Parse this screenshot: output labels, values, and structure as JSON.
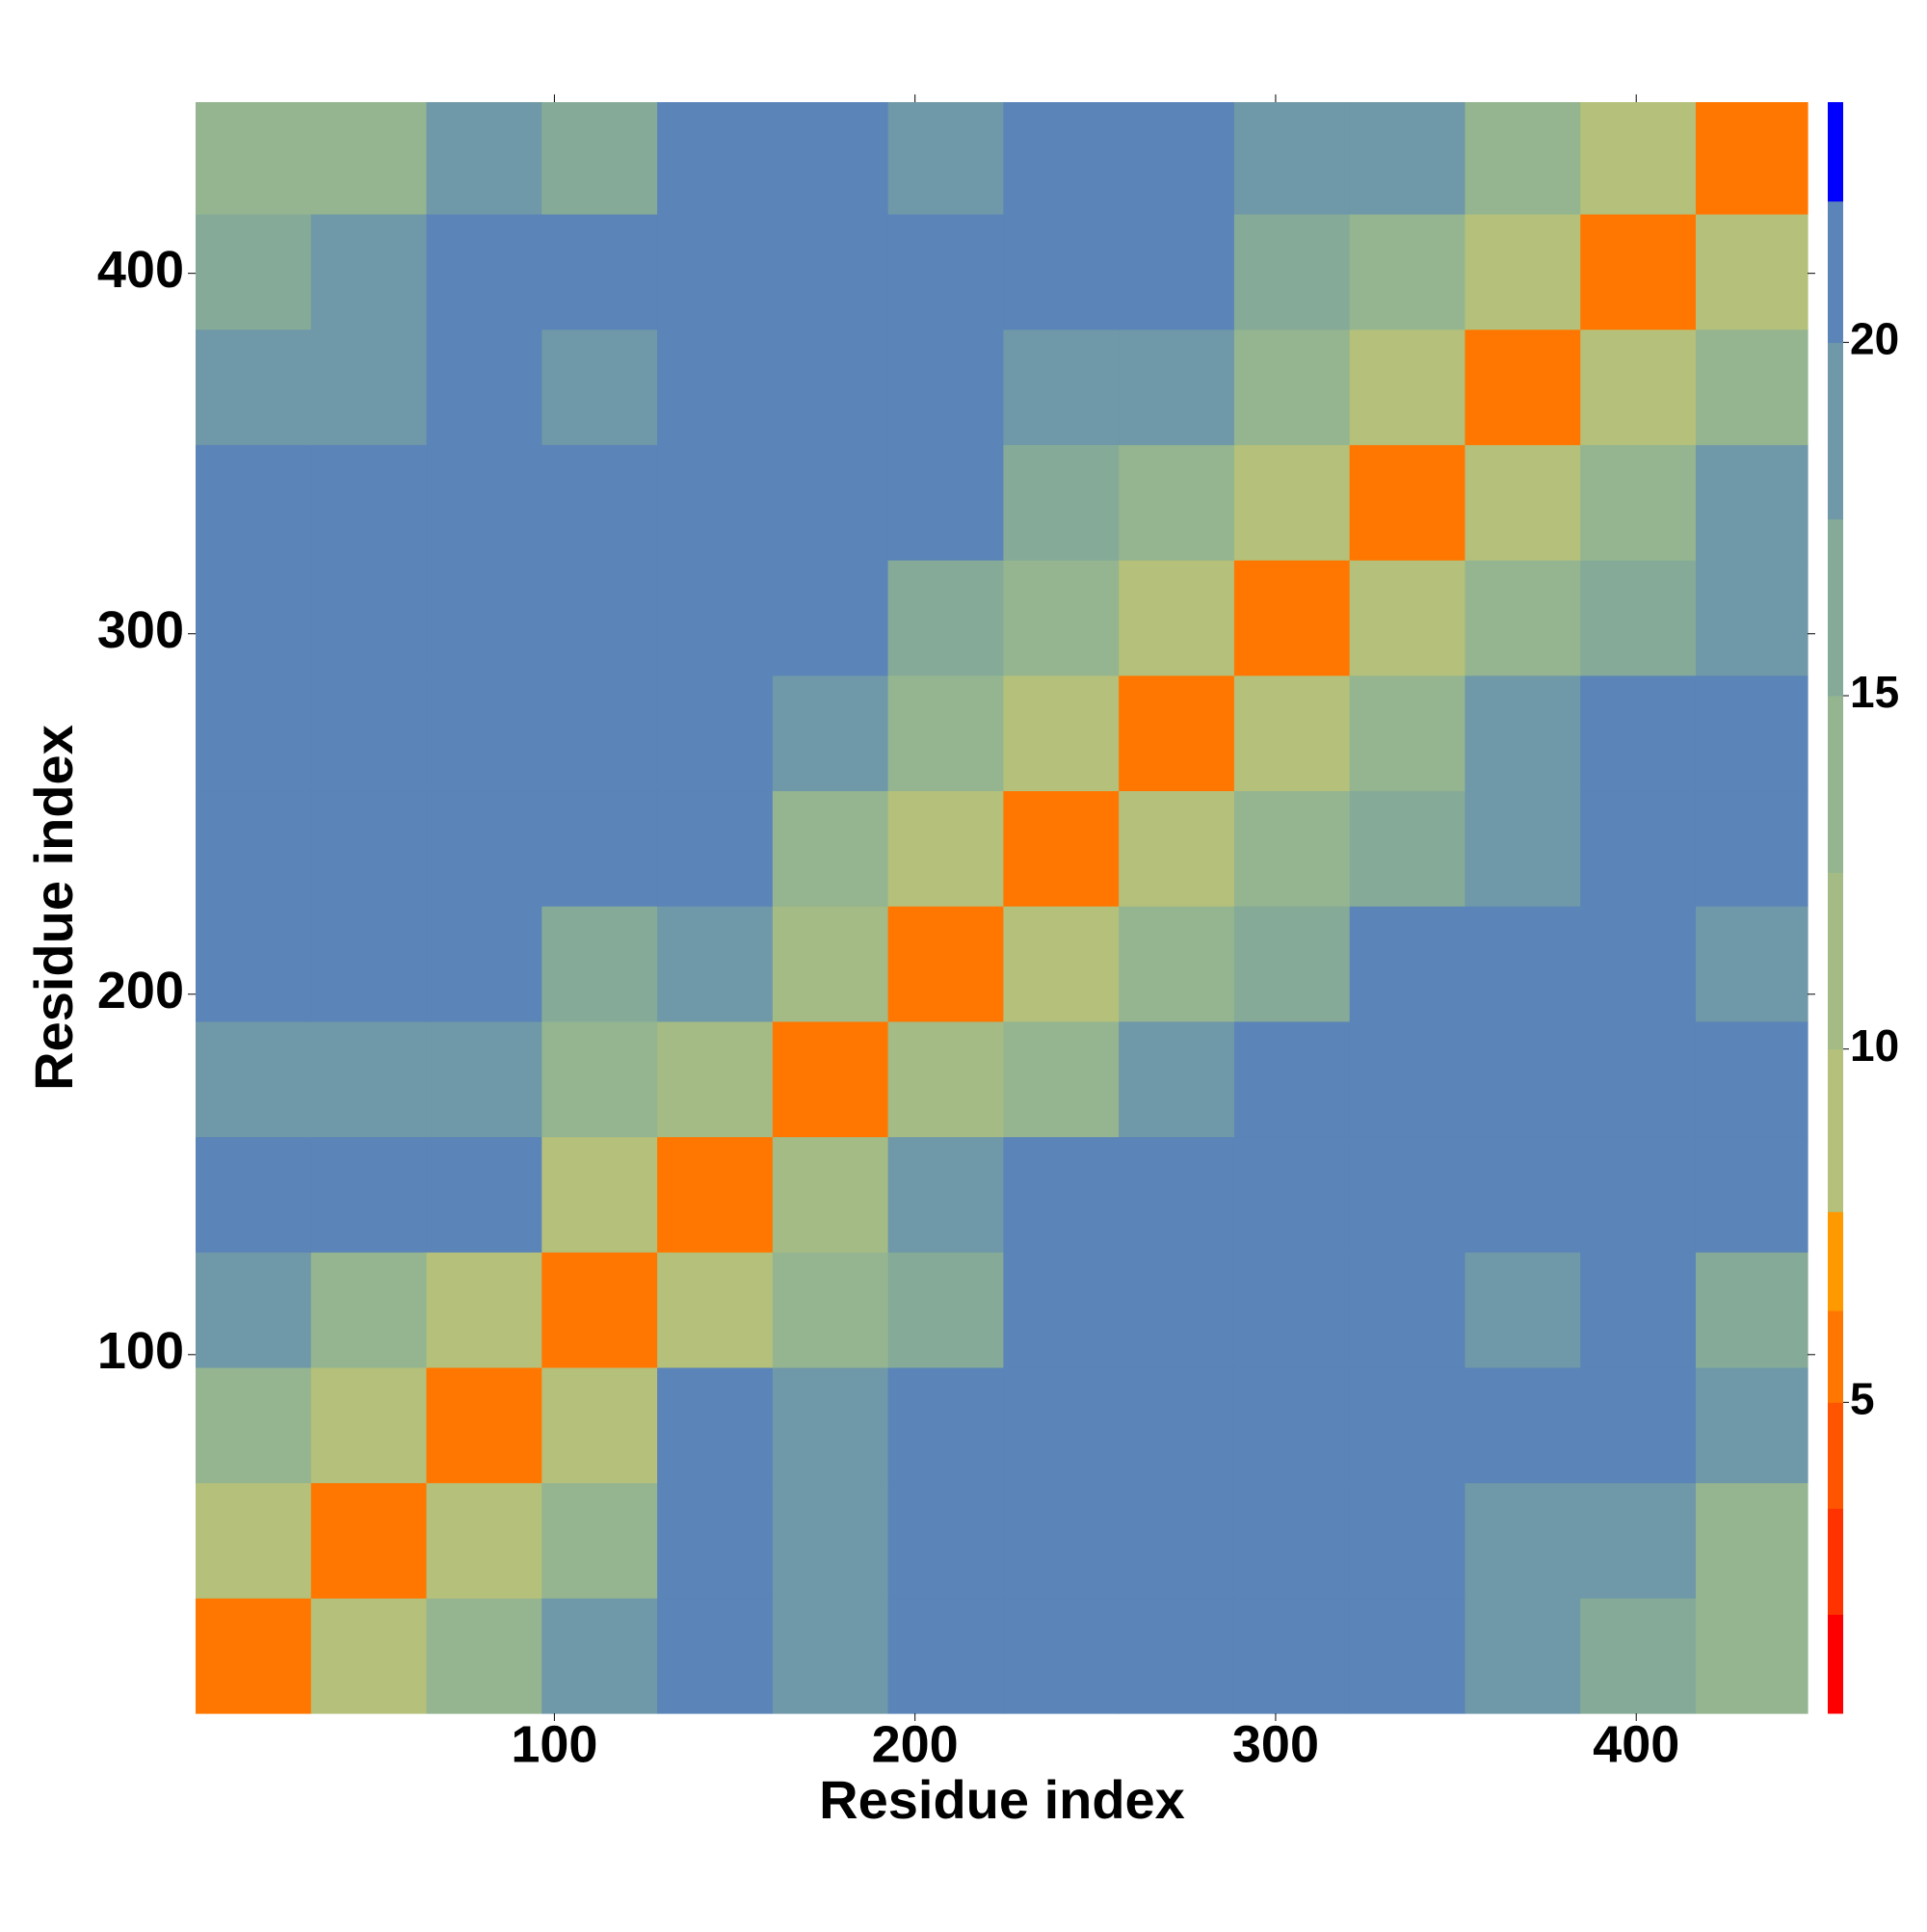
{
  "chart_data": {
    "type": "heatmap",
    "x_label": "Residue index",
    "y_label": "Residue index",
    "x": [
      0.5,
      32.5,
      64.5,
      96.5,
      128.5,
      160.5,
      192.5,
      224.5,
      256.5,
      288.5,
      320.5,
      352.5,
      384.5,
      416.5,
      447.5
    ],
    "y": [
      0.5,
      32.5,
      64.5,
      96.5,
      128.5,
      160.5,
      192.5,
      224.5,
      256.5,
      288.5,
      320.5,
      352.5,
      384.5,
      416.5,
      447.5
    ],
    "z": [
      [
        6,
        10,
        14,
        18,
        22,
        19,
        21,
        22,
        22,
        21,
        21,
        18,
        16,
        13
      ],
      [
        10,
        6,
        9,
        14,
        22,
        20,
        21,
        22,
        22,
        22,
        22,
        20,
        19,
        15
      ],
      [
        14,
        9,
        6,
        9,
        22,
        20,
        22,
        22,
        22,
        22,
        22,
        22,
        21,
        20
      ],
      [
        18,
        14,
        9,
        6,
        10,
        14,
        17,
        22,
        22,
        22,
        22,
        20,
        21,
        17
      ],
      [
        22,
        22,
        22,
        10,
        6,
        12,
        20,
        22,
        22,
        22,
        22,
        22,
        22,
        22
      ],
      [
        19,
        20,
        20,
        14,
        12,
        6,
        11,
        14,
        18,
        21,
        22,
        22,
        22,
        22
      ],
      [
        21,
        21,
        22,
        17,
        20,
        11,
        6,
        10,
        13,
        17,
        21,
        22,
        22,
        20
      ],
      [
        22,
        22,
        22,
        22,
        22,
        14,
        10,
        6,
        10,
        13,
        17,
        19,
        22,
        21
      ],
      [
        22,
        22,
        22,
        22,
        22,
        18,
        13,
        10,
        6,
        10,
        15,
        20,
        22,
        21
      ],
      [
        21,
        22,
        22,
        22,
        22,
        21,
        17,
        13,
        10,
        6,
        9,
        13,
        17,
        19
      ],
      [
        21,
        22,
        22,
        22,
        22,
        22,
        21,
        17,
        15,
        9,
        6,
        9,
        15,
        18
      ],
      [
        18,
        20,
        22,
        20,
        22,
        22,
        22,
        19,
        20,
        13,
        9,
        6,
        10,
        14
      ],
      [
        16,
        19,
        21,
        21,
        22,
        22,
        22,
        22,
        22,
        17,
        15,
        10,
        6,
        10
      ],
      [
        13,
        15,
        20,
        17,
        22,
        22,
        20,
        21,
        21,
        19,
        18,
        14,
        10,
        6
      ]
    ],
    "xlim": [
      0.5,
      447.5
    ],
    "ylim": [
      0.5,
      447.5
    ],
    "xticks": [
      100,
      200,
      300,
      400
    ],
    "yticks": [
      100,
      200,
      300,
      400
    ],
    "colorbar": {
      "lim": [
        0.6,
        23.4
      ],
      "ticks": [
        5,
        10,
        15,
        20
      ],
      "levels": [
        0.6,
        2,
        3.5,
        5,
        6.3,
        7.7,
        10,
        12.5,
        15,
        17.5,
        20,
        22,
        23.4
      ],
      "colors": [
        "#ff0000",
        "#ff3300",
        "#ff5500",
        "#ff7700",
        "#ff9900",
        "#b5c07a",
        "#a4bb85",
        "#94b590",
        "#85ab98",
        "#6f98a8",
        "#5b84b8",
        "#0000ff"
      ]
    }
  }
}
